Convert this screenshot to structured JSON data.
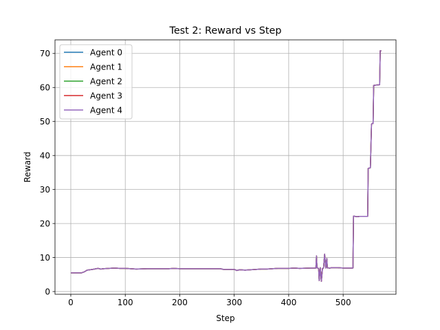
{
  "chart_data": {
    "type": "line",
    "title": "Test 2: Reward vs Step",
    "xlabel": "Step",
    "ylabel": "Reward",
    "xlim": [
      -29,
      597
    ],
    "ylim": [
      -0.8,
      74
    ],
    "xticks": [
      0,
      100,
      200,
      300,
      400,
      500
    ],
    "yticks": [
      0,
      10,
      20,
      30,
      40,
      50,
      60,
      70
    ],
    "grid": true,
    "legend_position": "top-left",
    "colors": {
      "agent0": "#1f77b4",
      "agent1": "#ff7f0e",
      "agent2": "#2ca02c",
      "agent3": "#d62728",
      "agent4": "#9467bd"
    },
    "series": [
      {
        "name": "Agent 0",
        "color_key": "agent0",
        "x": [
          0,
          20,
          25,
          30,
          40,
          50,
          55,
          60,
          70,
          80,
          90,
          100,
          110,
          120,
          140,
          160,
          180,
          190,
          200,
          220,
          240,
          260,
          275,
          280,
          300,
          305,
          310,
          320,
          330,
          350,
          360,
          380,
          400,
          410,
          420,
          440,
          450,
          451,
          452,
          455,
          456,
          458,
          460,
          462,
          464,
          466,
          468,
          470,
          471,
          472,
          474,
          476,
          478,
          480,
          490,
          500,
          510,
          518,
          519,
          525,
          530,
          540,
          545,
          546,
          550,
          552,
          553,
          555,
          556,
          560,
          567,
          568,
          570
        ],
        "y": [
          5.5,
          5.5,
          5.8,
          6.3,
          6.5,
          6.8,
          6.6,
          6.7,
          6.8,
          6.9,
          6.8,
          6.8,
          6.7,
          6.6,
          6.7,
          6.7,
          6.7,
          6.8,
          6.7,
          6.7,
          6.7,
          6.7,
          6.7,
          6.5,
          6.5,
          6.2,
          6.4,
          6.3,
          6.4,
          6.6,
          6.6,
          6.8,
          6.8,
          6.9,
          6.8,
          6.9,
          6.9,
          10.5,
          7.0,
          6.8,
          3.2,
          7.0,
          3.0,
          6.8,
          6.9,
          11.0,
          6.9,
          9.7,
          6.9,
          7.0,
          6.9,
          6.9,
          7.0,
          7.0,
          7.0,
          6.9,
          6.9,
          6.9,
          22.2,
          22.0,
          22.1,
          22.1,
          22.1,
          36.2,
          36.4,
          49.2,
          49.4,
          49.4,
          60.6,
          60.7,
          60.8,
          70.8,
          70.8
        ]
      },
      {
        "name": "Agent 1",
        "color_key": "agent1",
        "x": [
          0,
          20,
          25,
          30,
          40,
          50,
          55,
          60,
          70,
          80,
          90,
          100,
          110,
          120,
          140,
          160,
          180,
          190,
          200,
          220,
          240,
          260,
          275,
          280,
          300,
          305,
          310,
          320,
          330,
          350,
          360,
          380,
          400,
          410,
          420,
          440,
          450,
          451,
          452,
          455,
          456,
          458,
          460,
          462,
          464,
          466,
          468,
          470,
          471,
          472,
          474,
          476,
          478,
          480,
          490,
          500,
          510,
          518,
          519,
          525,
          530,
          540,
          545,
          546,
          550,
          552,
          553,
          555,
          556,
          560,
          567,
          568,
          570
        ],
        "y": [
          5.5,
          5.5,
          5.8,
          6.3,
          6.5,
          6.8,
          6.6,
          6.7,
          6.8,
          6.9,
          6.8,
          6.8,
          6.7,
          6.6,
          6.7,
          6.7,
          6.7,
          6.8,
          6.7,
          6.7,
          6.7,
          6.7,
          6.7,
          6.5,
          6.5,
          6.2,
          6.4,
          6.3,
          6.4,
          6.6,
          6.6,
          6.8,
          6.8,
          6.9,
          6.8,
          6.9,
          6.9,
          10.5,
          7.0,
          6.8,
          3.2,
          7.0,
          3.0,
          6.8,
          6.9,
          11.0,
          6.9,
          9.7,
          6.9,
          7.0,
          6.9,
          6.9,
          7.0,
          7.0,
          7.0,
          6.9,
          6.9,
          6.9,
          22.2,
          22.0,
          22.1,
          22.1,
          22.1,
          36.2,
          36.4,
          49.2,
          49.4,
          49.4,
          60.6,
          60.7,
          60.8,
          70.8,
          70.8
        ]
      },
      {
        "name": "Agent 2",
        "color_key": "agent2",
        "x": [
          0,
          20,
          25,
          30,
          40,
          50,
          55,
          60,
          70,
          80,
          90,
          100,
          110,
          120,
          140,
          160,
          180,
          190,
          200,
          220,
          240,
          260,
          275,
          280,
          300,
          305,
          310,
          320,
          330,
          350,
          360,
          380,
          400,
          410,
          420,
          440,
          450,
          451,
          452,
          455,
          456,
          458,
          460,
          462,
          464,
          466,
          468,
          470,
          471,
          472,
          474,
          476,
          478,
          480,
          490,
          500,
          510,
          518,
          519,
          525,
          530,
          540,
          545,
          546,
          550,
          552,
          553,
          555,
          556,
          560,
          567,
          568,
          570
        ],
        "y": [
          5.5,
          5.5,
          5.8,
          6.3,
          6.5,
          6.8,
          6.6,
          6.7,
          6.8,
          6.9,
          6.8,
          6.8,
          6.7,
          6.6,
          6.7,
          6.7,
          6.7,
          6.8,
          6.7,
          6.7,
          6.7,
          6.7,
          6.7,
          6.5,
          6.5,
          6.2,
          6.4,
          6.3,
          6.4,
          6.6,
          6.6,
          6.8,
          6.8,
          6.9,
          6.8,
          6.9,
          6.9,
          10.5,
          7.0,
          6.8,
          3.2,
          7.0,
          3.0,
          6.8,
          6.9,
          11.0,
          6.9,
          9.7,
          6.9,
          7.0,
          6.9,
          6.9,
          7.0,
          7.0,
          7.0,
          6.9,
          6.9,
          6.9,
          22.2,
          22.0,
          22.1,
          22.1,
          22.1,
          36.2,
          36.4,
          49.2,
          49.4,
          49.4,
          60.6,
          60.7,
          60.8,
          70.8,
          70.8
        ]
      },
      {
        "name": "Agent 3",
        "color_key": "agent3",
        "x": [
          0,
          20,
          25,
          30,
          40,
          50,
          55,
          60,
          70,
          80,
          90,
          100,
          110,
          120,
          140,
          160,
          180,
          190,
          200,
          220,
          240,
          260,
          275,
          280,
          300,
          305,
          310,
          320,
          330,
          350,
          360,
          380,
          400,
          410,
          420,
          440,
          450,
          451,
          452,
          455,
          456,
          458,
          460,
          462,
          464,
          466,
          468,
          470,
          471,
          472,
          474,
          476,
          478,
          480,
          490,
          500,
          510,
          518,
          519,
          525,
          530,
          540,
          545,
          546,
          550,
          552,
          553,
          555,
          556,
          560,
          567,
          568,
          570
        ],
        "y": [
          5.5,
          5.5,
          5.8,
          6.3,
          6.5,
          6.8,
          6.6,
          6.7,
          6.8,
          6.9,
          6.8,
          6.8,
          6.7,
          6.6,
          6.7,
          6.7,
          6.7,
          6.8,
          6.7,
          6.7,
          6.7,
          6.7,
          6.7,
          6.5,
          6.5,
          6.2,
          6.4,
          6.3,
          6.4,
          6.6,
          6.6,
          6.8,
          6.8,
          6.9,
          6.8,
          6.9,
          6.9,
          10.5,
          7.0,
          6.8,
          3.2,
          7.0,
          3.0,
          6.8,
          6.9,
          11.0,
          6.9,
          9.7,
          6.9,
          7.0,
          6.9,
          6.9,
          7.0,
          7.0,
          7.0,
          6.9,
          6.9,
          6.9,
          22.2,
          22.0,
          22.1,
          22.1,
          22.1,
          36.2,
          36.4,
          49.2,
          49.4,
          49.4,
          60.6,
          60.7,
          60.8,
          70.8,
          70.8
        ]
      },
      {
        "name": "Agent 4",
        "color_key": "agent4",
        "x": [
          0,
          20,
          25,
          30,
          40,
          50,
          55,
          60,
          70,
          80,
          90,
          100,
          110,
          120,
          140,
          160,
          180,
          190,
          200,
          220,
          240,
          260,
          275,
          280,
          300,
          305,
          310,
          320,
          330,
          350,
          360,
          380,
          400,
          410,
          420,
          440,
          450,
          451,
          452,
          455,
          456,
          458,
          460,
          462,
          464,
          466,
          468,
          470,
          471,
          472,
          474,
          476,
          478,
          480,
          490,
          500,
          510,
          518,
          519,
          525,
          530,
          540,
          545,
          546,
          550,
          552,
          553,
          555,
          556,
          560,
          567,
          568,
          570
        ],
        "y": [
          5.5,
          5.5,
          5.8,
          6.3,
          6.5,
          6.8,
          6.6,
          6.7,
          6.8,
          6.9,
          6.8,
          6.8,
          6.7,
          6.6,
          6.7,
          6.7,
          6.7,
          6.8,
          6.7,
          6.7,
          6.7,
          6.7,
          6.7,
          6.5,
          6.5,
          6.2,
          6.4,
          6.3,
          6.4,
          6.6,
          6.6,
          6.8,
          6.8,
          6.9,
          6.8,
          6.9,
          6.9,
          10.5,
          7.0,
          6.8,
          3.2,
          7.0,
          3.0,
          6.8,
          6.9,
          11.0,
          6.9,
          9.7,
          6.9,
          7.0,
          6.9,
          6.9,
          7.0,
          7.0,
          7.0,
          6.9,
          6.9,
          6.9,
          22.2,
          22.0,
          22.1,
          22.1,
          22.1,
          36.2,
          36.4,
          49.2,
          49.4,
          49.4,
          60.6,
          60.7,
          60.8,
          70.8,
          70.8
        ]
      }
    ]
  }
}
